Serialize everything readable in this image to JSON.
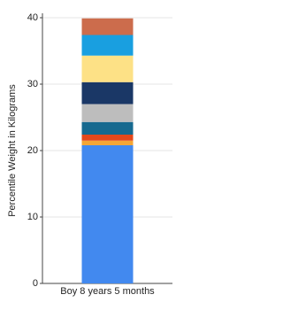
{
  "chart_data": {
    "type": "stacked-bar",
    "y_label": "Percentile Weight in Kilograms",
    "categories": [
      "Boy 8 years 5 months"
    ],
    "series": [
      {
        "color": "#4289ef",
        "values": [
          20.8
        ]
      },
      {
        "color": "#f4a636",
        "values": [
          0.7
        ]
      },
      {
        "color": "#e4481b",
        "values": [
          0.9
        ]
      },
      {
        "color": "#16698f",
        "values": [
          1.9
        ]
      },
      {
        "color": "#bdbdbd",
        "values": [
          2.7
        ]
      },
      {
        "color": "#1a3766",
        "values": [
          3.3
        ]
      },
      {
        "color": "#fde186",
        "values": [
          4.0
        ]
      },
      {
        "color": "#199fe0",
        "values": [
          3.1
        ]
      },
      {
        "color": "#cc6c4c",
        "values": [
          2.5
        ]
      }
    ],
    "ylim": [
      0,
      40
    ],
    "yticks": [
      0,
      10,
      20,
      30,
      40
    ],
    "grid": true
  }
}
